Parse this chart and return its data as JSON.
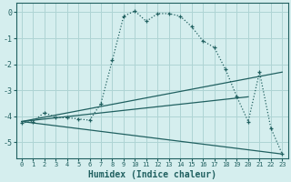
{
  "xlabel": "Humidex (Indice chaleur)",
  "background_color": "#d5eeee",
  "grid_color": "#aed4d4",
  "line_color": "#206060",
  "xlim": [
    -0.5,
    23.5
  ],
  "ylim": [
    -5.6,
    0.35
  ],
  "yticks": [
    0,
    -1,
    -2,
    -3,
    -4,
    -5
  ],
  "xticks": [
    0,
    1,
    2,
    3,
    4,
    5,
    6,
    7,
    8,
    9,
    10,
    11,
    12,
    13,
    14,
    15,
    16,
    17,
    18,
    19,
    20,
    21,
    22,
    23
  ],
  "dotted_series": {
    "x": [
      0,
      1,
      2,
      3,
      4,
      5,
      6,
      7,
      8,
      9,
      10,
      11,
      12,
      13,
      14,
      15,
      16,
      17,
      18,
      19,
      20,
      21,
      22,
      23
    ],
    "y": [
      -4.25,
      -4.2,
      -3.85,
      -4.05,
      -4.05,
      -4.1,
      -4.15,
      -3.5,
      -1.85,
      -0.15,
      0.05,
      -0.35,
      -0.05,
      -0.05,
      -0.15,
      -0.55,
      -1.1,
      -1.35,
      -2.2,
      -3.25,
      -4.2,
      -2.3,
      -4.45,
      -5.45
    ]
  },
  "line_series": [
    {
      "x": [
        0,
        23
      ],
      "y": [
        -4.2,
        -2.3
      ]
    },
    {
      "x": [
        0,
        23
      ],
      "y": [
        -4.2,
        -5.45
      ]
    },
    {
      "x": [
        0,
        20
      ],
      "y": [
        -4.2,
        -3.25
      ]
    }
  ]
}
